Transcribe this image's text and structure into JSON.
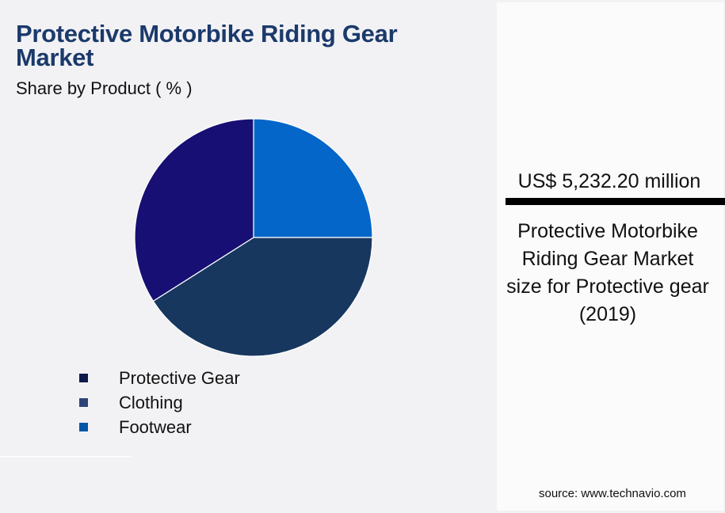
{
  "header": {
    "title": "Protective Motorbike Riding Gear Market",
    "subtitle": "Share by Product ( % )"
  },
  "legend": {
    "items": [
      {
        "label": "Protective Gear",
        "color": "#0e1a4a"
      },
      {
        "label": "Clothing",
        "color": "#2e4479"
      },
      {
        "label": "Footwear",
        "color": "#0456a8"
      }
    ]
  },
  "kpi": {
    "value": "US$ 5,232.20 million",
    "description": "Protective Motorbike Riding Gear Market size for Protective gear (2019)"
  },
  "footer": {
    "source": "source: www.technavio.com"
  },
  "chart_data": {
    "type": "pie",
    "title": "Protective Motorbike Riding Gear Market",
    "subtitle": "Share by Product ( % )",
    "categories": [
      "Protective Gear",
      "Clothing",
      "Footwear"
    ],
    "values": [
      34,
      41,
      25
    ],
    "colors": [
      "#170f73",
      "#18375f",
      "#0366c8"
    ],
    "start_angle_deg": 0,
    "direction": "clockwise",
    "legend_position": "bottom-left",
    "annotation": "US$ 5,232.20 million — Protective Motorbike Riding Gear Market size for Protective gear (2019)"
  }
}
